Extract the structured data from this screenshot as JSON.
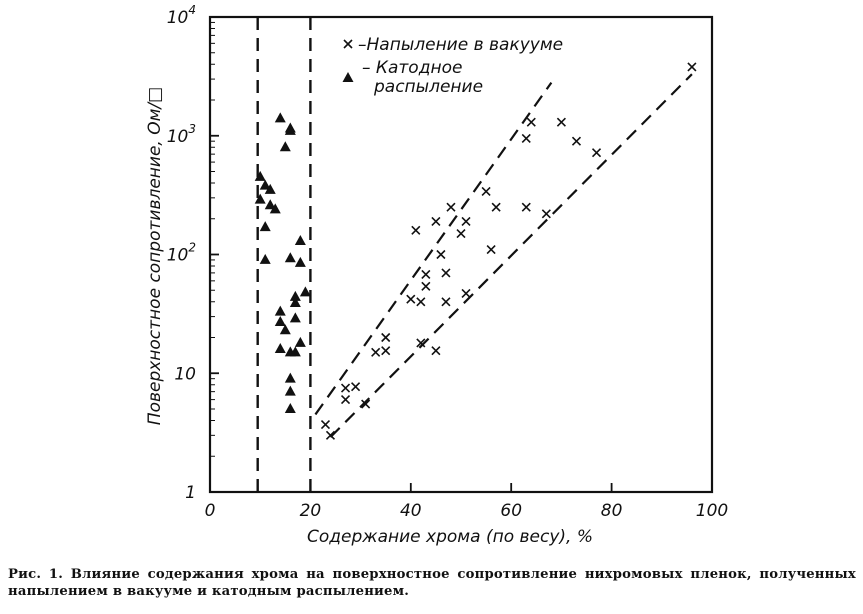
{
  "chart_data": {
    "type": "scatter",
    "title": "",
    "xlabel": "Содержание хрома (по весу), %",
    "ylabel": "Поверхностное сопротивление, Ом/□",
    "xlim": [
      0,
      100
    ],
    "ylim": [
      1,
      10000
    ],
    "yscale": "log",
    "x_ticks": [
      "0",
      "20",
      "40",
      "60",
      "80",
      "100"
    ],
    "y_ticks": [
      {
        "base": "10",
        "exp": "4",
        "value": 10000
      },
      {
        "base": "10",
        "exp": "3",
        "value": 1000
      },
      {
        "base": "10",
        "exp": "2",
        "value": 100
      },
      {
        "base": "10",
        "exp": "",
        "value": 10
      },
      {
        "base": "1",
        "exp": "",
        "value": 1
      }
    ],
    "legend": [
      {
        "symbol": "×",
        "label": "–Напыление  в вакууме"
      },
      {
        "symbol": "▲",
        "label": "– Катодное\nраспыление"
      }
    ],
    "vertical_dashed_lines_x": [
      9.5,
      20
    ],
    "band_lines": [
      {
        "name": "upper",
        "points": [
          [
            21,
            4.5
          ],
          [
            68,
            2800
          ]
        ]
      },
      {
        "name": "lower",
        "points": [
          [
            24,
            2.9
          ],
          [
            96,
            3300
          ]
        ]
      }
    ],
    "series": [
      {
        "name": "Напыление в вакууме",
        "marker": "cross",
        "points": [
          [
            23,
            3.7
          ],
          [
            24,
            3
          ],
          [
            27,
            6
          ],
          [
            27,
            7.5
          ],
          [
            29,
            7.7
          ],
          [
            31,
            5.5
          ],
          [
            33,
            15
          ],
          [
            35,
            15.5
          ],
          [
            35,
            20
          ],
          [
            40,
            42
          ],
          [
            41,
            160
          ],
          [
            42,
            18
          ],
          [
            42,
            40
          ],
          [
            43,
            54
          ],
          [
            43,
            68
          ],
          [
            45,
            15.5
          ],
          [
            45,
            190
          ],
          [
            46,
            100
          ],
          [
            47,
            40
          ],
          [
            47,
            70
          ],
          [
            48,
            250
          ],
          [
            50,
            150
          ],
          [
            51,
            47
          ],
          [
            51,
            190
          ],
          [
            55,
            340
          ],
          [
            56,
            110
          ],
          [
            57,
            250
          ],
          [
            63,
            250
          ],
          [
            63,
            950
          ],
          [
            64,
            1300
          ],
          [
            67,
            220
          ],
          [
            70,
            1300
          ],
          [
            73,
            900
          ],
          [
            77,
            720
          ],
          [
            96,
            3800
          ]
        ]
      },
      {
        "name": "Катодное распыление",
        "marker": "triangle",
        "points": [
          [
            10,
            450
          ],
          [
            10,
            290
          ],
          [
            11,
            170
          ],
          [
            11,
            90
          ],
          [
            11,
            380
          ],
          [
            12,
            260
          ],
          [
            12,
            350
          ],
          [
            13,
            240
          ],
          [
            14,
            1400
          ],
          [
            14,
            33
          ],
          [
            14,
            27
          ],
          [
            14,
            16
          ],
          [
            15,
            800
          ],
          [
            15,
            23
          ],
          [
            16,
            1100
          ],
          [
            16,
            1150
          ],
          [
            16,
            93
          ],
          [
            16,
            15
          ],
          [
            16,
            9
          ],
          [
            16,
            7
          ],
          [
            16,
            5
          ],
          [
            17,
            44
          ],
          [
            17,
            39
          ],
          [
            17,
            29
          ],
          [
            17,
            15
          ],
          [
            18,
            130
          ],
          [
            18,
            85
          ],
          [
            18,
            18
          ],
          [
            19,
            48
          ]
        ]
      }
    ]
  },
  "caption": {
    "text": "Рис. 1. Влияние содержания хрома на поверхностное сопротивление нихромовых пленок, полученных напылением в вакууме и катодным распылением."
  },
  "colors": {
    "ink": "#111111",
    "background": "#ffffff"
  }
}
